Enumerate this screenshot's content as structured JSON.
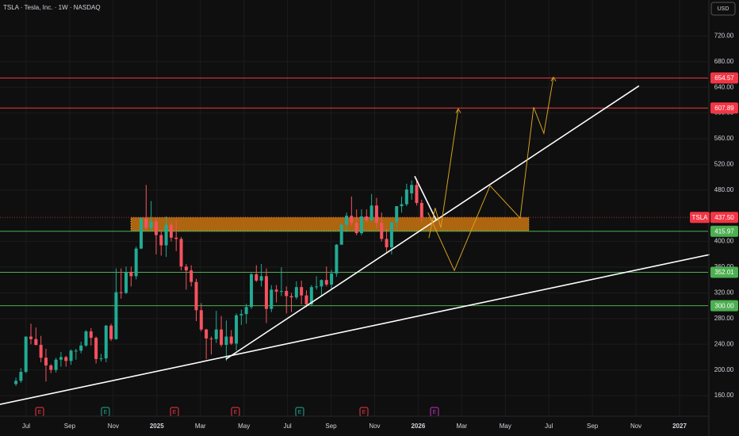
{
  "chart_data": {
    "type": "candlestick",
    "title": "TSLA · Tesla, Inc. · 1W · NASDAQ",
    "currency": "USD",
    "up_color": "#22ab94",
    "down_color": "#f7525f",
    "xlim": [
      4.8,
      37.31
    ],
    "ylim": [
      128,
      776
    ],
    "xticks": [
      {
        "value": 6,
        "label": "Jul"
      },
      {
        "value": 8,
        "label": "Sep"
      },
      {
        "value": 10,
        "label": "Nov"
      },
      {
        "value": 12,
        "label": "2025"
      },
      {
        "value": 14,
        "label": "Mar"
      },
      {
        "value": 16,
        "label": "May"
      },
      {
        "value": 18,
        "label": "Jul"
      },
      {
        "value": 20,
        "label": "Sep"
      },
      {
        "value": 22,
        "label": "Nov"
      },
      {
        "value": 24,
        "label": "2026"
      },
      {
        "value": 26,
        "label": "Mar"
      },
      {
        "value": 28,
        "label": "May"
      },
      {
        "value": 30,
        "label": "Jul"
      },
      {
        "value": 32,
        "label": "Sep"
      },
      {
        "value": 34,
        "label": "Nov"
      },
      {
        "value": 36,
        "label": "2027"
      }
    ],
    "yticks": [
      {
        "value": 160,
        "label": "160.00"
      },
      {
        "value": 200,
        "label": "200.00"
      },
      {
        "value": 240,
        "label": "240.00"
      },
      {
        "value": 280,
        "label": "280.00"
      },
      {
        "value": 320,
        "label": "320.00"
      },
      {
        "value": 360,
        "label": "360.00"
      },
      {
        "value": 400,
        "label": "400.00"
      },
      {
        "value": 480,
        "label": "480.00"
      },
      {
        "value": 520,
        "label": "520.00"
      },
      {
        "value": 560,
        "label": "560.00"
      },
      {
        "value": 600,
        "label": "600.00"
      },
      {
        "value": 640,
        "label": "640.00"
      },
      {
        "value": 680,
        "label": "680.00"
      },
      {
        "value": 720,
        "label": "720.00"
      }
    ],
    "grid": true,
    "ohlc": {
      "x": [
        5.53,
        5.76,
        5.99,
        6.22,
        6.45,
        6.68,
        6.91,
        7.14,
        7.37,
        7.6,
        7.83,
        8.06,
        8.29,
        8.52,
        8.75,
        8.98,
        9.21,
        9.44,
        9.67,
        9.9,
        10.13,
        10.36,
        10.59,
        10.82,
        11.05,
        11.28,
        11.51,
        11.74,
        11.97,
        12.2,
        12.43,
        12.66,
        12.89,
        13.12,
        13.35,
        13.58,
        13.81,
        14.04,
        14.27,
        14.5,
        14.73,
        14.96,
        15.19,
        15.42,
        15.65,
        15.88,
        16.11,
        16.34,
        16.57,
        16.8,
        17.03,
        17.26,
        17.49,
        17.72,
        17.95,
        18.18,
        18.41,
        18.64,
        18.87,
        19.1,
        19.33,
        19.56,
        19.79,
        20.02,
        20.25,
        20.48,
        20.71,
        20.94,
        21.17,
        21.4,
        21.63,
        21.86,
        22.09,
        22.32,
        22.55,
        22.78,
        23.01,
        23.24,
        23.47,
        23.7,
        23.93,
        24.16
      ],
      "open": [
        178,
        183,
        197,
        252,
        248,
        239,
        219,
        207,
        200,
        216,
        220,
        214,
        230,
        230,
        238,
        260,
        250,
        217,
        218,
        269,
        248,
        321,
        320,
        352,
        346,
        389,
        436,
        421,
        431,
        410,
        394,
        426,
        406,
        404,
        361,
        355,
        337,
        293,
        263,
        249,
        248,
        263,
        239,
        252,
        241,
        285,
        287,
        298,
        349,
        339,
        346,
        295,
        325,
        322,
        323,
        315,
        313,
        329,
        316,
        302,
        329,
        330,
        340,
        333,
        350,
        395,
        426,
        440,
        429,
        413,
        439,
        433,
        456,
        429,
        404,
        391,
        430,
        455,
        458,
        475,
        488,
        460
      ],
      "high": [
        188,
        203,
        252,
        272,
        266,
        253,
        233,
        209,
        219,
        228,
        222,
        232,
        233,
        244,
        262,
        265,
        252,
        225,
        270,
        272,
        358,
        358,
        361,
        361,
        392,
        437,
        488,
        463,
        436,
        418,
        439,
        430,
        433,
        407,
        365,
        363,
        342,
        304,
        264,
        252,
        292,
        284,
        277,
        262,
        288,
        294,
        303,
        351,
        363,
        365,
        358,
        332,
        332,
        360,
        330,
        320,
        338,
        339,
        324,
        332,
        346,
        341,
        361,
        356,
        396,
        428,
        445,
        470,
        450,
        450,
        450,
        474,
        468,
        445,
        420,
        430,
        455,
        470,
        490,
        495,
        498,
        465
      ],
      "low": [
        175,
        180,
        195,
        240,
        238,
        212,
        182,
        195,
        196,
        205,
        205,
        208,
        216,
        226,
        236,
        238,
        210,
        213,
        212,
        245,
        247,
        311,
        318,
        330,
        341,
        388,
        418,
        417,
        380,
        378,
        376,
        400,
        385,
        355,
        325,
        330,
        276,
        260,
        217,
        224,
        242,
        236,
        214,
        239,
        230,
        270,
        272,
        295,
        337,
        330,
        273,
        290,
        305,
        315,
        288,
        290,
        310,
        302,
        298,
        299,
        325,
        316,
        330,
        325,
        345,
        395,
        415,
        425,
        410,
        410,
        430,
        430,
        420,
        400,
        383,
        380,
        420,
        445,
        455,
        465,
        456,
        430
      ],
      "close": [
        183,
        197,
        252,
        248,
        239,
        219,
        207,
        200,
        216,
        220,
        214,
        230,
        230,
        238,
        260,
        250,
        217,
        218,
        269,
        248,
        321,
        320,
        352,
        346,
        389,
        436,
        421,
        431,
        410,
        394,
        426,
        406,
        404,
        361,
        355,
        337,
        293,
        263,
        249,
        248,
        263,
        239,
        252,
        241,
        285,
        287,
        298,
        349,
        339,
        346,
        295,
        325,
        322,
        323,
        315,
        313,
        329,
        316,
        302,
        329,
        330,
        340,
        333,
        350,
        395,
        426,
        440,
        429,
        413,
        439,
        433,
        456,
        429,
        404,
        391,
        430,
        455,
        458,
        481,
        488,
        460,
        437.5
      ]
    },
    "levels": [
      {
        "value": 654.57,
        "label": "654.57",
        "color": "#f23645"
      },
      {
        "value": 607.89,
        "label": "607.89",
        "color": "#f23645"
      },
      {
        "value": 437.5,
        "label": "437.50",
        "name": "TSLA",
        "color": "#f23645",
        "style": "dotted"
      },
      {
        "value": 415.97,
        "label": "415.97",
        "color": "#4caf50"
      },
      {
        "value": 352.01,
        "label": "352.01",
        "color": "#4caf50"
      },
      {
        "value": 300.0,
        "label": "300.00",
        "color": "#4caf50"
      }
    ],
    "zone": {
      "x": [
        10.81,
        29.08
      ],
      "y": [
        416.5,
        437.5
      ],
      "color": "#c9740f"
    },
    "trendlines": [
      {
        "x": [
          4.8,
          37.38
        ],
        "y": [
          146.4,
          379.6
        ],
        "color": "#ffffff"
      },
      {
        "x": [
          15.17,
          34.14
        ],
        "y": [
          216.7,
          642.3
        ],
        "color": "#ffffff"
      },
      {
        "x": [
          23.84,
          24.84
        ],
        "y": [
          501.7,
          432.6
        ],
        "color": "#ffffff"
      }
    ],
    "projections": [
      {
        "x": [
          24.49,
          24.78,
          25.04,
          25.84
        ],
        "y": [
          405.5,
          452.3,
          421.5,
          606.5
        ],
        "color": "#d4a020"
      },
      {
        "x": [
          24.45,
          25.66,
          27.3,
          28.68,
          29.3,
          29.77,
          30.21
        ],
        "y": [
          444.9,
          354.9,
          486.9,
          436.3,
          609.0,
          568.3,
          655.9
        ],
        "color": "#d4a020"
      }
    ],
    "events": [
      {
        "x": 6.62,
        "label": "E",
        "color": "#f23645"
      },
      {
        "x": 9.64,
        "label": "E",
        "color": "#22ab94"
      },
      {
        "x": 12.81,
        "label": "E",
        "color": "#f23645"
      },
      {
        "x": 15.61,
        "label": "E",
        "color": "#f23645"
      },
      {
        "x": 18.56,
        "label": "E",
        "color": "#22ab94"
      },
      {
        "x": 21.51,
        "label": "E",
        "color": "#f23645"
      },
      {
        "x": 24.75,
        "label": "E",
        "color": "#c030c0"
      }
    ]
  }
}
